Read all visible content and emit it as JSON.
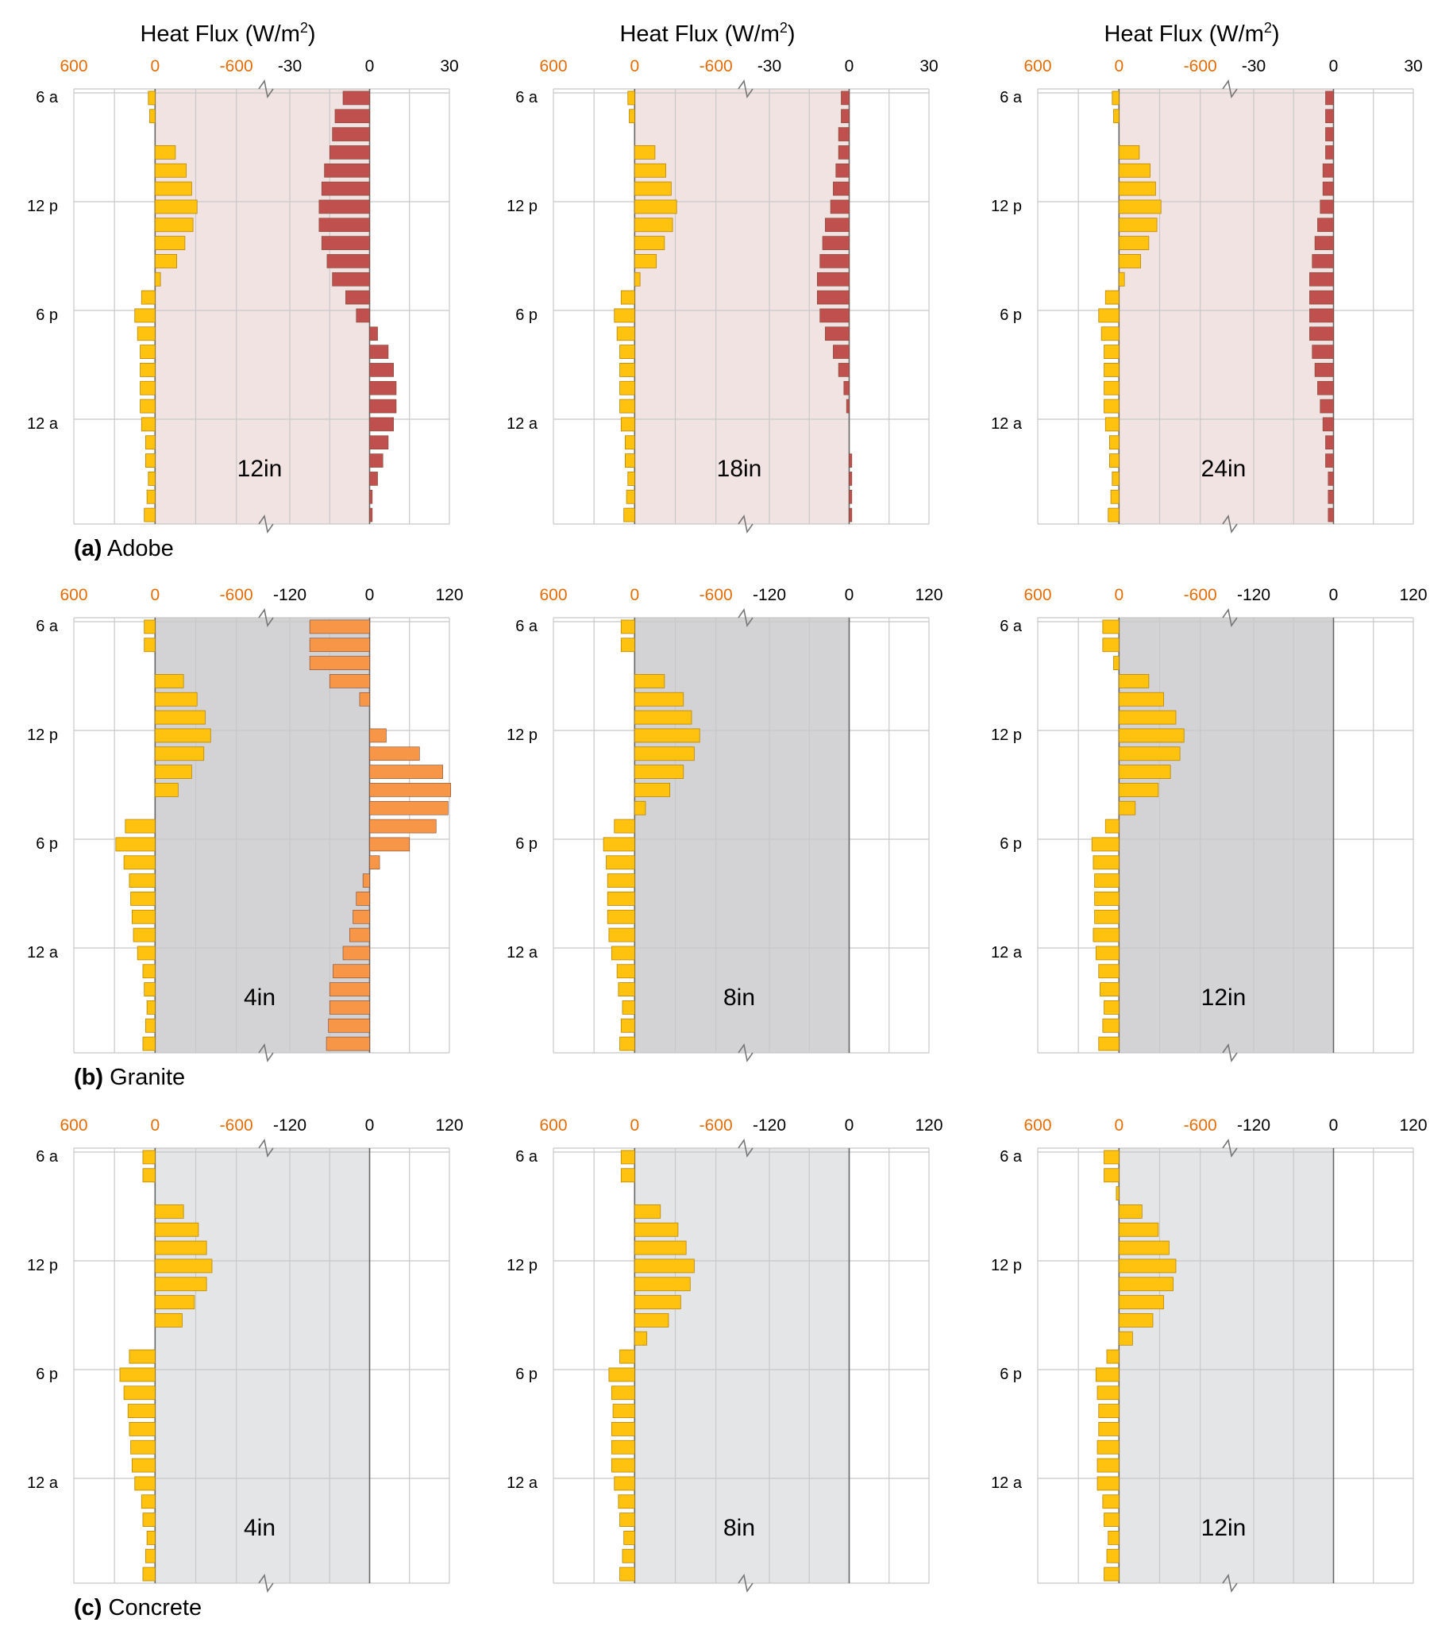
{
  "header": "Heat Flux (W/m",
  "header_sup": "2",
  "header_close": ")",
  "time_labels": [
    "6 a",
    "12 p",
    "6 p",
    "12 a"
  ],
  "colors": {
    "solar": "#FFC20E",
    "adobe_bar": "#C0504D",
    "granite_bar": "#F79646",
    "concrete_bar": "#A6A6A6",
    "adobe_bg": "#F2E3E3",
    "granite_bg": "#D3D3D5",
    "concrete_bg": "#E4E5E7",
    "solar_axis": "#E36C09"
  },
  "rows": [
    {
      "label_bold": "(a)",
      "label_text": "Adobe",
      "bar_color": "adobe_bar",
      "bg_color": "adobe_bg",
      "solar_ticks": [
        "600",
        "0",
        "-600"
      ],
      "flux_ticks": [
        "-30",
        "0",
        "30"
      ],
      "flux_range": [
        -30,
        30
      ]
    },
    {
      "label_bold": "(b)",
      "label_text": "Granite",
      "bar_color": "granite_bar",
      "bg_color": "granite_bg",
      "solar_ticks": [
        "600",
        "0",
        "-600"
      ],
      "flux_ticks": [
        "-120",
        "0",
        "120"
      ],
      "flux_range": [
        -120,
        120
      ]
    },
    {
      "label_bold": "(c)",
      "label_text": "Concrete",
      "bar_color": "concrete_bar",
      "bg_color": "concrete_bg",
      "solar_ticks": [
        "600",
        "0",
        "-600"
      ],
      "flux_ticks": [
        "-120",
        "0",
        "120"
      ],
      "flux_range": [
        -120,
        120
      ]
    }
  ],
  "chart_data": {
    "type": "bar",
    "orientation": "horizontal",
    "hours": [
      "6a",
      "7a",
      "8a",
      "9a",
      "10a",
      "11a",
      "12p",
      "1p",
      "2p",
      "3p",
      "4p",
      "5p",
      "6p",
      "7p",
      "8p",
      "9p",
      "10p",
      "11p",
      "12a",
      "1a",
      "2a",
      "3a",
      "4a",
      "5a"
    ],
    "solar_axis": {
      "range": [
        600,
        -1200
      ],
      "ticks": [
        600,
        0,
        -600
      ]
    },
    "panels": [
      {
        "row": 0,
        "thickness": "12in",
        "solar": [
          50,
          40,
          0,
          -150,
          -230,
          -270,
          -310,
          -280,
          -220,
          -160,
          -40,
          100,
          150,
          130,
          110,
          110,
          110,
          110,
          100,
          70,
          70,
          50,
          60,
          80
        ],
        "flux": [
          -10,
          -13,
          -14,
          -15,
          -17,
          -18,
          -19,
          -19,
          -18,
          -16,
          -14,
          -9,
          -5,
          3,
          7,
          9,
          10,
          10,
          9,
          7,
          5,
          3,
          1,
          1
        ]
      },
      {
        "row": 0,
        "thickness": "18in",
        "solar": [
          50,
          40,
          0,
          -150,
          -230,
          -270,
          -310,
          -280,
          -220,
          -160,
          -40,
          100,
          150,
          130,
          110,
          110,
          110,
          110,
          100,
          70,
          70,
          50,
          60,
          80
        ],
        "flux": [
          -3,
          -3,
          -4,
          -4,
          -5,
          -6,
          -7,
          -9,
          -10,
          -11,
          -12,
          -12,
          -11,
          -9,
          -6,
          -4,
          -2,
          -1,
          0,
          0,
          1,
          1,
          1,
          1
        ]
      },
      {
        "row": 0,
        "thickness": "24in",
        "solar": [
          50,
          40,
          0,
          -150,
          -230,
          -270,
          -310,
          -280,
          -220,
          -160,
          -40,
          100,
          150,
          130,
          110,
          110,
          110,
          110,
          100,
          70,
          70,
          50,
          60,
          80
        ],
        "flux": [
          -3,
          -3,
          -3,
          -3,
          -4,
          -4,
          -5,
          -6,
          -7,
          -8,
          -9,
          -9,
          -9,
          -9,
          -8,
          -7,
          -6,
          -5,
          -4,
          -3,
          -3,
          -2,
          -2,
          -2
        ]
      },
      {
        "row": 1,
        "thickness": "4in",
        "solar": [
          80,
          80,
          0,
          -210,
          -310,
          -370,
          -410,
          -360,
          -270,
          -170,
          0,
          220,
          290,
          230,
          190,
          180,
          170,
          160,
          130,
          90,
          80,
          60,
          70,
          90
        ],
        "flux": [
          -90,
          -90,
          -90,
          -60,
          -15,
          0,
          25,
          75,
          110,
          122,
          118,
          100,
          60,
          15,
          -10,
          -20,
          -25,
          -30,
          -40,
          -55,
          -60,
          -60,
          -62,
          -65
        ]
      },
      {
        "row": 1,
        "thickness": "8in",
        "solar": [
          100,
          100,
          0,
          -220,
          -360,
          -420,
          -480,
          -440,
          -360,
          -260,
          -80,
          150,
          230,
          210,
          200,
          200,
          200,
          190,
          170,
          130,
          120,
          90,
          100,
          110
        ]
      },
      {
        "row": 1,
        "thickness": "12in",
        "solar": [
          120,
          120,
          40,
          -220,
          -330,
          -420,
          -480,
          -450,
          -380,
          -290,
          -120,
          100,
          200,
          190,
          180,
          180,
          180,
          190,
          170,
          150,
          140,
          110,
          120,
          150
        ]
      },
      {
        "row": 2,
        "thickness": "4in",
        "solar": [
          90,
          90,
          0,
          -210,
          -320,
          -380,
          -420,
          -380,
          -290,
          -200,
          0,
          190,
          260,
          230,
          200,
          190,
          180,
          170,
          150,
          100,
          90,
          60,
          70,
          90
        ]
      },
      {
        "row": 2,
        "thickness": "8in",
        "solar": [
          100,
          100,
          0,
          -190,
          -320,
          -380,
          -440,
          -410,
          -340,
          -250,
          -90,
          110,
          190,
          170,
          160,
          170,
          170,
          170,
          150,
          120,
          110,
          80,
          90,
          110
        ]
      },
      {
        "row": 2,
        "thickness": "12in",
        "solar": [
          110,
          110,
          20,
          -170,
          -290,
          -370,
          -420,
          -400,
          -330,
          -250,
          -100,
          90,
          170,
          160,
          150,
          150,
          160,
          160,
          160,
          120,
          110,
          80,
          90,
          110
        ]
      }
    ]
  }
}
